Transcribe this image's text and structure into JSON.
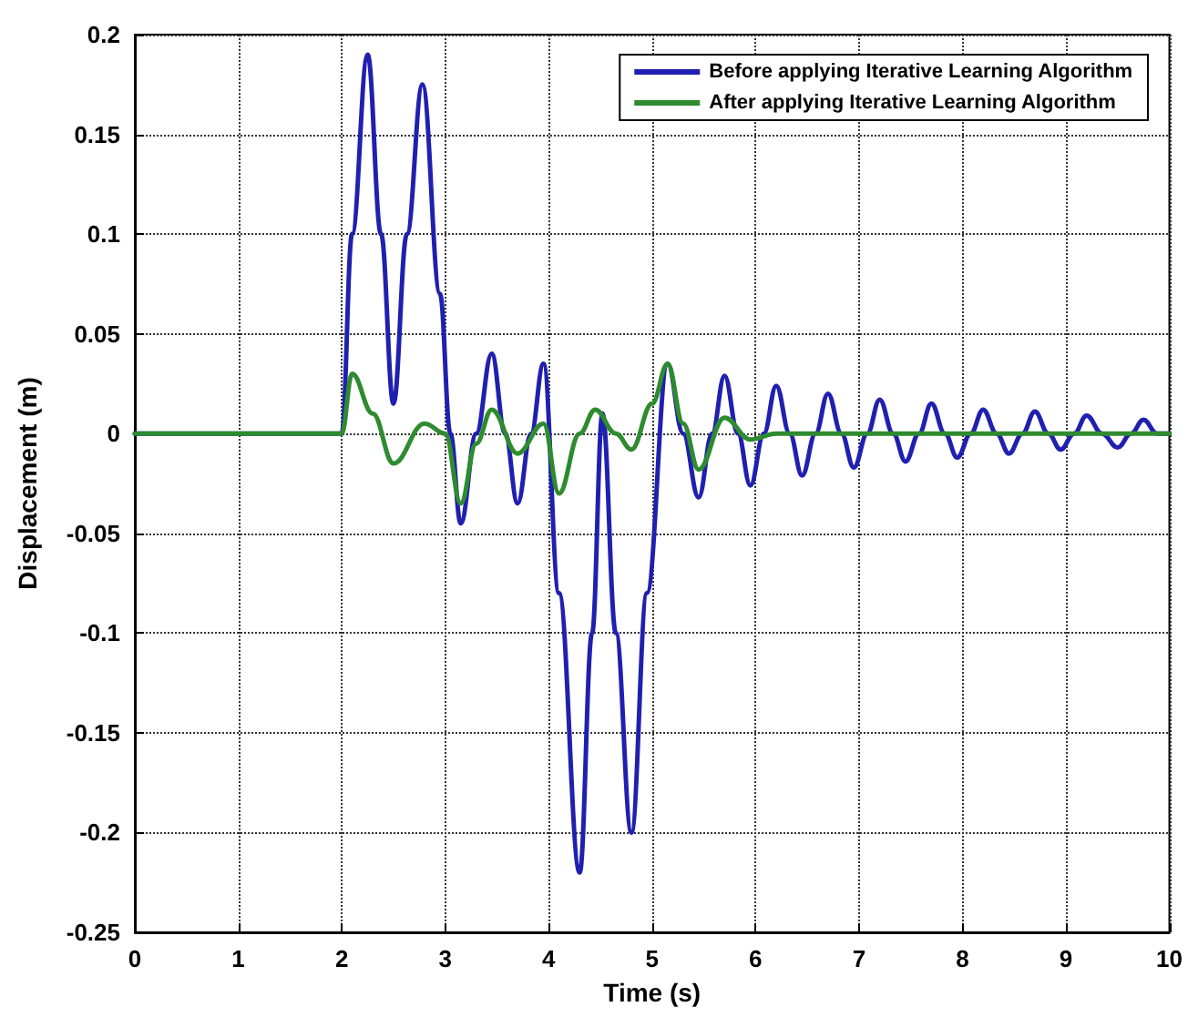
{
  "chart_data": {
    "type": "line",
    "xlabel": "Time (s)",
    "ylabel": "Displacement (m)",
    "xlim": [
      0,
      10
    ],
    "xticks": [
      0,
      1,
      2,
      3,
      4,
      5,
      6,
      7,
      8,
      9,
      10
    ],
    "ylim": [
      -0.25,
      0.2
    ],
    "yticks": [
      -0.25,
      -0.2,
      -0.15,
      -0.1,
      -0.05,
      0,
      0.05,
      0.1,
      0.15,
      0.2
    ],
    "grid": true,
    "legend": "top right",
    "line_style": "solid",
    "marker": "none",
    "series": [
      {
        "name": "Before applying Iterative Learning Algorithm",
        "color": "#2020b0",
        "x": [
          0,
          2,
          2.1,
          2.25,
          2.38,
          2.5,
          2.63,
          2.78,
          2.95,
          3.05,
          3.15,
          3.3,
          3.45,
          3.58,
          3.7,
          3.83,
          3.95,
          4.1,
          4.3,
          4.42,
          4.52,
          4.65,
          4.8,
          4.95,
          5.15,
          5.3,
          5.45,
          5.58,
          5.7,
          5.83,
          5.95,
          6.08,
          6.2,
          6.33,
          6.45,
          6.58,
          6.7,
          6.83,
          6.95,
          7.08,
          7.2,
          7.33,
          7.45,
          7.58,
          7.7,
          7.83,
          7.95,
          8.08,
          8.2,
          8.33,
          8.45,
          8.58,
          8.7,
          8.83,
          8.95,
          9.08,
          9.2,
          9.35,
          9.5,
          9.63,
          9.75,
          9.88,
          10
        ],
        "values": [
          0,
          0,
          0.1,
          0.19,
          0.1,
          0.015,
          0.1,
          0.175,
          0.07,
          0,
          -0.045,
          0,
          0.04,
          0,
          -0.035,
          0,
          0.035,
          -0.08,
          -0.22,
          -0.1,
          0.01,
          -0.1,
          -0.2,
          -0.08,
          0.035,
          0,
          -0.032,
          0,
          0.029,
          0,
          -0.026,
          0,
          0.024,
          0,
          -0.021,
          0,
          0.02,
          0,
          -0.017,
          0,
          0.017,
          0,
          -0.014,
          0,
          0.015,
          0,
          -0.012,
          0,
          0.012,
          0,
          -0.01,
          0,
          0.011,
          0,
          -0.008,
          0,
          0.009,
          0,
          -0.007,
          0,
          0.007,
          0,
          0
        ]
      },
      {
        "name": "After applying Iterative Learning Algorithm",
        "color": "#2e8b2e",
        "x": [
          0,
          2,
          2.1,
          2.3,
          2.5,
          2.8,
          3.0,
          3.15,
          3.3,
          3.45,
          3.7,
          3.95,
          4.1,
          4.3,
          4.45,
          4.65,
          4.8,
          5.0,
          5.15,
          5.3,
          5.45,
          5.7,
          5.95,
          6.2,
          10
        ],
        "values": [
          0,
          0,
          0.03,
          0.01,
          -0.015,
          0.005,
          0,
          -0.035,
          -0.005,
          0.012,
          -0.01,
          0.005,
          -0.03,
          0,
          0.012,
          0,
          -0.008,
          0.015,
          0.035,
          0.005,
          -0.018,
          0.008,
          -0.003,
          0,
          0
        ]
      }
    ]
  }
}
